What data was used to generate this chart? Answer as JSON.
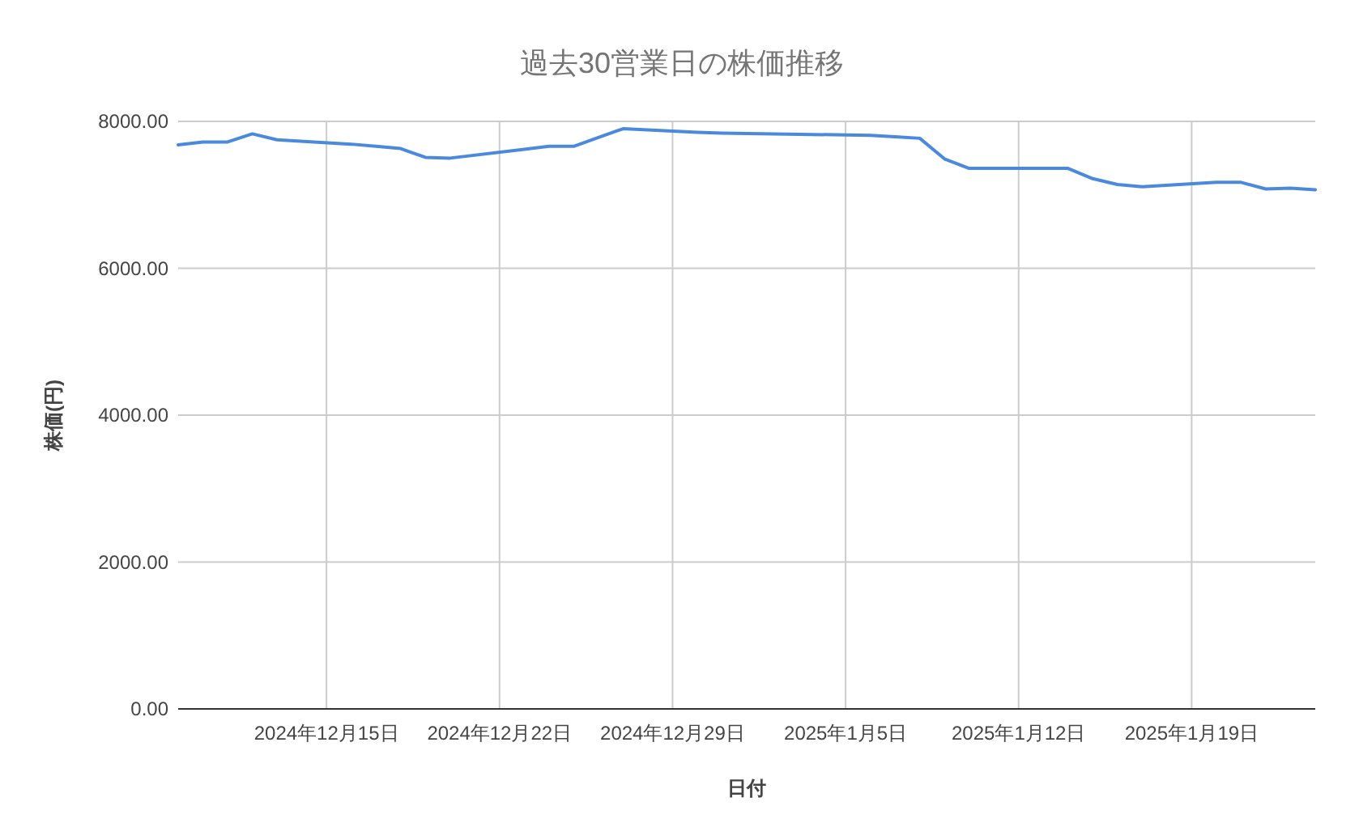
{
  "chart_data": {
    "type": "line",
    "title": "過去30営業日の株価推移",
    "xlabel": "日付",
    "ylabel": "株価(円)",
    "x": [
      "2024-12-09",
      "2024-12-10",
      "2024-12-11",
      "2024-12-12",
      "2024-12-13",
      "2024-12-16",
      "2024-12-17",
      "2024-12-18",
      "2024-12-19",
      "2024-12-20",
      "2024-12-23",
      "2024-12-24",
      "2024-12-25",
      "2024-12-26",
      "2024-12-27",
      "2024-12-30",
      "2024-12-31",
      "2025-01-06",
      "2025-01-07",
      "2025-01-08",
      "2025-01-09",
      "2025-01-10",
      "2025-01-13",
      "2025-01-14",
      "2025-01-15",
      "2025-01-16",
      "2025-01-17",
      "2025-01-20",
      "2025-01-21",
      "2025-01-22",
      "2025-01-23",
      "2025-01-24"
    ],
    "series": [
      {
        "color": "#4a89dc",
        "values": [
          7680,
          7720,
          7720,
          7830,
          7750,
          7690,
          7660,
          7630,
          7510,
          7500,
          7620,
          7660,
          7660,
          7780,
          7900,
          7850,
          7840,
          7810,
          7790,
          7770,
          7490,
          7360,
          7360,
          7360,
          7220,
          7140,
          7110,
          7170,
          7170,
          7080,
          7090,
          7070
        ]
      }
    ],
    "xlim": [
      "2024-12-09",
      "2025-01-24"
    ],
    "xticks": [
      {
        "value": "2024-12-15",
        "label": "2024年12月15日"
      },
      {
        "value": "2024-12-22",
        "label": "2024年12月22日"
      },
      {
        "value": "2024-12-29",
        "label": "2024年12月29日"
      },
      {
        "value": "2025-01-05",
        "label": "2025年1月5日"
      },
      {
        "value": "2025-01-12",
        "label": "2025年1月12日"
      },
      {
        "value": "2025-01-19",
        "label": "2025年1月19日"
      }
    ],
    "ylim": [
      0,
      8000
    ],
    "yticks": [
      {
        "value": 0,
        "label": "0.00"
      },
      {
        "value": 2000,
        "label": "2000.00"
      },
      {
        "value": 4000,
        "label": "4000.00"
      },
      {
        "value": 6000,
        "label": "6000.00"
      },
      {
        "value": 8000,
        "label": "8000.00"
      }
    ],
    "grid": true,
    "marker": "none",
    "line_style": "solid"
  }
}
